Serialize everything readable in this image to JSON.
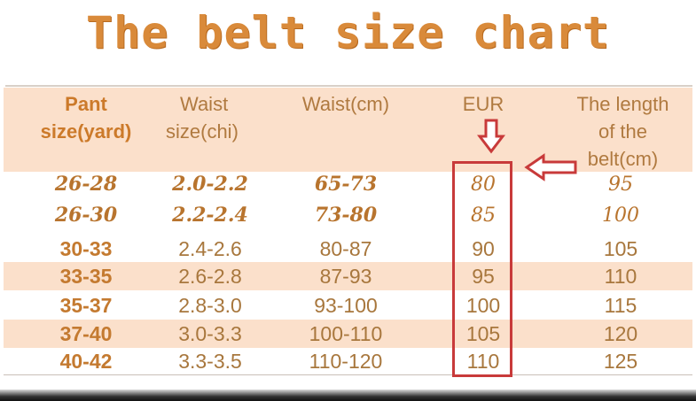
{
  "title": "The belt size chart",
  "headers": [
    "Pant size(yard)",
    "Waist size(chi)",
    "Waist(cm)",
    "EUR",
    "The length of the belt(cm)"
  ],
  "header_lines": [
    [
      "Pant",
      "size(yard)"
    ],
    [
      "Waist",
      "size(chi)"
    ],
    [
      "Waist(cm)"
    ],
    [
      "EUR"
    ],
    [
      "The length",
      "of the",
      "belt(cm)"
    ]
  ],
  "rows": [
    [
      "26-28",
      "2.0-2.2",
      "65-73",
      "80",
      "95"
    ],
    [
      "26-30",
      "2.2-2.4",
      "73-80",
      "85",
      "100"
    ],
    [
      "30-33",
      "2.4-2.6",
      "80-87",
      "90",
      "105"
    ],
    [
      "33-35",
      "2.6-2.8",
      "87-93",
      "95",
      "110"
    ],
    [
      "35-37",
      "2.8-3.0",
      "93-100",
      "100",
      "115"
    ],
    [
      "37-40",
      "3.0-3.3",
      "100-110",
      "105",
      "120"
    ],
    [
      "40-42",
      "3.3-3.5",
      "110-120",
      "110",
      "125"
    ]
  ],
  "highlighted_column": "EUR",
  "colors": {
    "title": "#d98a3a",
    "header_bg": "#fbe0cb",
    "text": "#a8773d",
    "highlight": "#c83a3a"
  },
  "icons": [
    "arrow-down-icon",
    "arrow-left-icon"
  ]
}
